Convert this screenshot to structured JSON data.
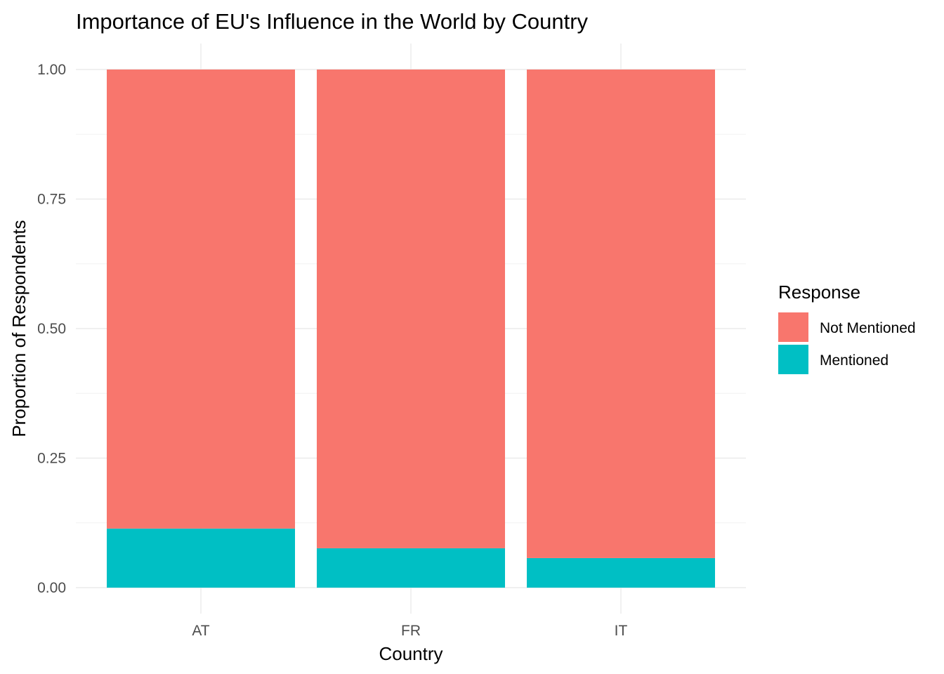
{
  "chart_data": {
    "type": "bar",
    "stacked": true,
    "title": "Importance of EU's Influence in the World by Country",
    "xlabel": "Country",
    "ylabel": "Proportion of Respondents",
    "categories": [
      "AT",
      "FR",
      "IT"
    ],
    "series": [
      {
        "name": "Not Mentioned",
        "color": "#F8766D",
        "values": [
          0.886,
          0.924,
          0.943
        ]
      },
      {
        "name": "Mentioned",
        "color": "#00BFC4",
        "values": [
          0.114,
          0.076,
          0.057
        ]
      }
    ],
    "ylim": [
      0,
      1
    ],
    "yticks": [
      "0.00",
      "0.25",
      "0.50",
      "0.75",
      "1.00"
    ],
    "grid": true,
    "legend": {
      "title": "Response",
      "position": "right"
    }
  }
}
